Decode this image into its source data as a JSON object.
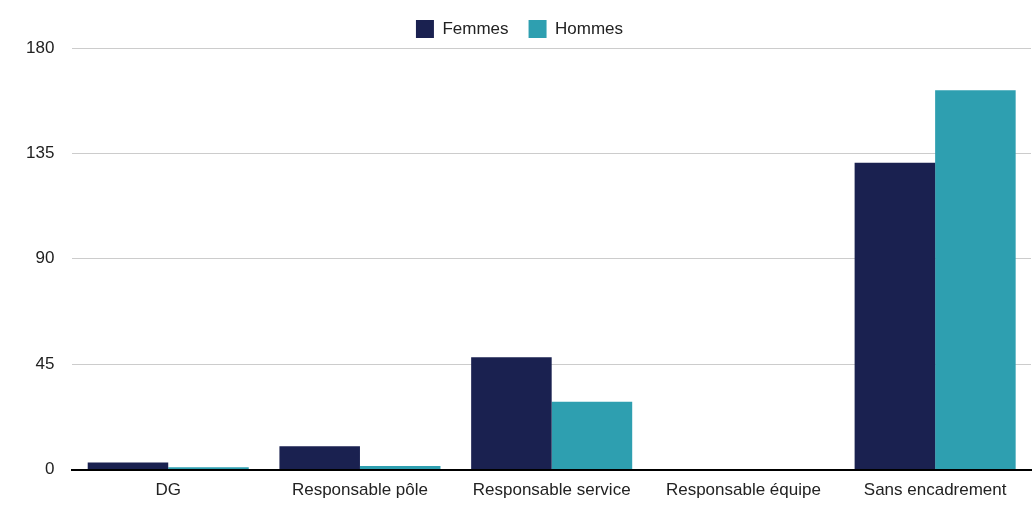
{
  "chart_data": {
    "type": "bar",
    "categories": [
      "DG",
      "Responsable pôle",
      "Responsable service",
      "Responsable équipe",
      "Sans encadrement"
    ],
    "series": [
      {
        "name": "Femmes",
        "color": "#1a2150",
        "values": [
          3,
          10,
          48,
          0,
          131
        ]
      },
      {
        "name": "Hommes",
        "color": "#2e9fb0",
        "values": [
          1,
          1.5,
          29,
          0,
          162
        ]
      }
    ],
    "ylim": [
      0,
      180
    ],
    "yticks": [
      0,
      45,
      90,
      135,
      180
    ],
    "grid": "y",
    "legend": "top"
  }
}
